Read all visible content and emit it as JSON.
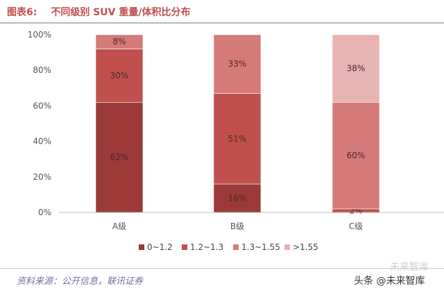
{
  "header": {
    "label": "图表6:",
    "title": "不同级别 SUV 重量/体积比分布"
  },
  "footer": {
    "source": "资料来源：公开信息，联讯证券",
    "watermark_top": "未来智库",
    "watermark": "头条 @未来智库"
  },
  "chart_data": {
    "type": "bar",
    "stacked": true,
    "categories": [
      "A级",
      "B级",
      "C级"
    ],
    "series": [
      {
        "name": "0~1.2",
        "values": [
          62,
          16,
          0
        ],
        "labels": [
          "62%",
          "16%",
          ""
        ],
        "color": "#9b3a38"
      },
      {
        "name": "1.2~1.3",
        "values": [
          30,
          51,
          2
        ],
        "labels": [
          "30%",
          "51%",
          "2%"
        ],
        "color": "#c0504d"
      },
      {
        "name": "1.3~1.55",
        "values": [
          8,
          33,
          60
        ],
        "labels": [
          "8%",
          "33%",
          "60%"
        ],
        "color": "#d47a78"
      },
      {
        "name": ">1.55",
        "values": [
          0,
          0,
          38
        ],
        "labels": [
          "",
          "",
          "38%"
        ],
        "color": "#e8b4b3"
      }
    ],
    "yticks": [
      "0%",
      "20%",
      "40%",
      "60%",
      "80%",
      "100%"
    ],
    "ylim": [
      0,
      100
    ],
    "grid": false,
    "legend": "bottom"
  }
}
